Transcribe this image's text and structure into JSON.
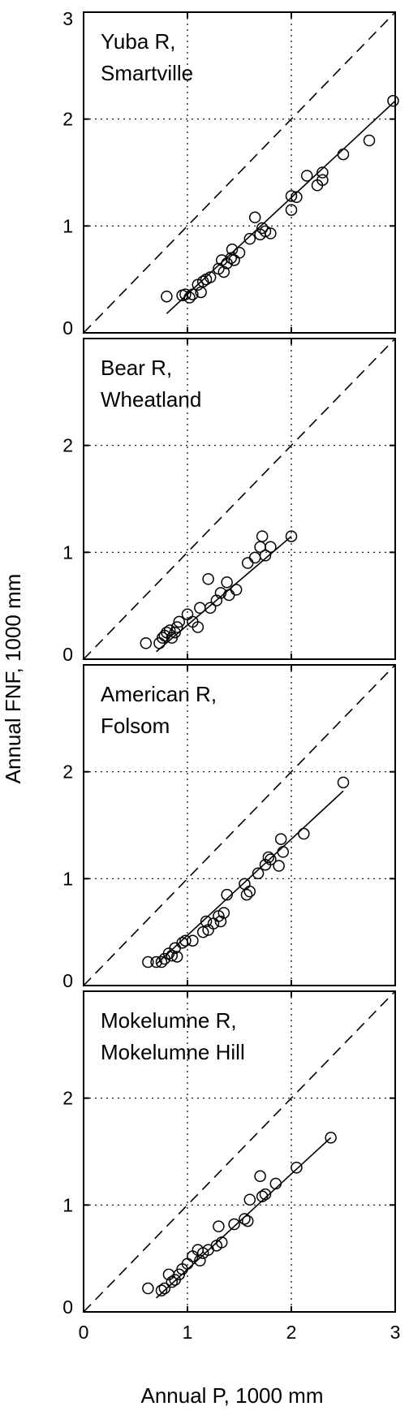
{
  "chart_data": {
    "type": "scatter",
    "xlabel": "Annual P, 1000 mm",
    "ylabel": "Annual FNF, 1000 mm",
    "xlim": [
      0,
      3
    ],
    "ylim": [
      0,
      3
    ],
    "x_ticks": [
      "0",
      "1",
      "2",
      "3"
    ],
    "y_ticks": [
      "0",
      "1",
      "2",
      "3"
    ],
    "grid": "dotted at 1 and 2",
    "reference_line": "1:1 dashed",
    "panels": [
      {
        "title_lines": [
          "Yuba R,",
          "Smartville"
        ],
        "y_ticks": [
          "0",
          "1",
          "2",
          "3"
        ],
        "fit": [
          [
            0.8,
            0.18
          ],
          [
            3.0,
            2.17
          ]
        ],
        "points": [
          [
            0.8,
            0.34
          ],
          [
            0.95,
            0.35
          ],
          [
            0.98,
            0.36
          ],
          [
            1.02,
            0.33
          ],
          [
            1.05,
            0.36
          ],
          [
            1.1,
            0.45
          ],
          [
            1.13,
            0.38
          ],
          [
            1.15,
            0.48
          ],
          [
            1.18,
            0.5
          ],
          [
            1.22,
            0.52
          ],
          [
            1.3,
            0.6
          ],
          [
            1.33,
            0.68
          ],
          [
            1.35,
            0.57
          ],
          [
            1.38,
            0.65
          ],
          [
            1.42,
            0.7
          ],
          [
            1.43,
            0.78
          ],
          [
            1.45,
            0.68
          ],
          [
            1.5,
            0.75
          ],
          [
            1.6,
            0.88
          ],
          [
            1.65,
            1.08
          ],
          [
            1.7,
            0.92
          ],
          [
            1.72,
            0.98
          ],
          [
            1.75,
            0.95
          ],
          [
            1.8,
            0.93
          ],
          [
            2.0,
            1.28
          ],
          [
            2.0,
            1.15
          ],
          [
            2.05,
            1.27
          ],
          [
            2.15,
            1.47
          ],
          [
            2.25,
            1.38
          ],
          [
            2.3,
            1.43
          ],
          [
            2.3,
            1.5
          ],
          [
            2.5,
            1.67
          ],
          [
            2.75,
            1.8
          ],
          [
            2.98,
            2.17
          ]
        ]
      },
      {
        "title_lines": [
          "Bear R,",
          "Wheatland"
        ],
        "y_ticks": [
          "0",
          "1",
          "2"
        ],
        "fit": [
          [
            0.7,
            0.07
          ],
          [
            2.0,
            1.15
          ]
        ],
        "points": [
          [
            0.6,
            0.15
          ],
          [
            0.73,
            0.15
          ],
          [
            0.76,
            0.2
          ],
          [
            0.78,
            0.22
          ],
          [
            0.8,
            0.25
          ],
          [
            0.83,
            0.27
          ],
          [
            0.85,
            0.2
          ],
          [
            0.88,
            0.25
          ],
          [
            0.9,
            0.3
          ],
          [
            0.92,
            0.35
          ],
          [
            1.0,
            0.42
          ],
          [
            1.05,
            0.35
          ],
          [
            1.1,
            0.3
          ],
          [
            1.12,
            0.48
          ],
          [
            1.2,
            0.75
          ],
          [
            1.22,
            0.48
          ],
          [
            1.28,
            0.55
          ],
          [
            1.32,
            0.62
          ],
          [
            1.38,
            0.72
          ],
          [
            1.4,
            0.6
          ],
          [
            1.47,
            0.65
          ],
          [
            1.58,
            0.9
          ],
          [
            1.65,
            0.95
          ],
          [
            1.7,
            1.05
          ],
          [
            1.72,
            1.15
          ],
          [
            1.75,
            0.97
          ],
          [
            1.8,
            1.05
          ],
          [
            2.0,
            1.15
          ]
        ]
      },
      {
        "title_lines": [
          "American R,",
          "Folsom"
        ],
        "y_ticks": [
          "0",
          "1",
          "2"
        ],
        "fit": [
          [
            0.7,
            0.2
          ],
          [
            2.5,
            1.82
          ]
        ],
        "points": [
          [
            0.62,
            0.22
          ],
          [
            0.7,
            0.22
          ],
          [
            0.75,
            0.22
          ],
          [
            0.78,
            0.25
          ],
          [
            0.82,
            0.3
          ],
          [
            0.85,
            0.28
          ],
          [
            0.88,
            0.35
          ],
          [
            0.9,
            0.27
          ],
          [
            0.95,
            0.4
          ],
          [
            0.98,
            0.42
          ],
          [
            1.05,
            0.42
          ],
          [
            1.15,
            0.5
          ],
          [
            1.18,
            0.6
          ],
          [
            1.2,
            0.52
          ],
          [
            1.25,
            0.58
          ],
          [
            1.3,
            0.65
          ],
          [
            1.32,
            0.6
          ],
          [
            1.35,
            0.68
          ],
          [
            1.38,
            0.85
          ],
          [
            1.55,
            0.95
          ],
          [
            1.57,
            0.85
          ],
          [
            1.6,
            0.88
          ],
          [
            1.68,
            1.05
          ],
          [
            1.75,
            1.13
          ],
          [
            1.78,
            1.2
          ],
          [
            1.8,
            1.18
          ],
          [
            1.88,
            1.12
          ],
          [
            1.9,
            1.37
          ],
          [
            1.92,
            1.25
          ],
          [
            2.12,
            1.42
          ],
          [
            2.5,
            1.9
          ]
        ]
      },
      {
        "title_lines": [
          "Mokelumne R,",
          "Mokelumne Hill"
        ],
        "y_ticks": [
          "0",
          "1",
          "2"
        ],
        "fit": [
          [
            0.7,
            0.13
          ],
          [
            2.38,
            1.63
          ]
        ],
        "points": [
          [
            0.62,
            0.22
          ],
          [
            0.75,
            0.2
          ],
          [
            0.78,
            0.22
          ],
          [
            0.82,
            0.35
          ],
          [
            0.85,
            0.28
          ],
          [
            0.88,
            0.3
          ],
          [
            0.92,
            0.35
          ],
          [
            0.95,
            0.4
          ],
          [
            1.0,
            0.45
          ],
          [
            1.05,
            0.52
          ],
          [
            1.1,
            0.58
          ],
          [
            1.12,
            0.48
          ],
          [
            1.15,
            0.55
          ],
          [
            1.2,
            0.58
          ],
          [
            1.28,
            0.62
          ],
          [
            1.3,
            0.8
          ],
          [
            1.33,
            0.65
          ],
          [
            1.45,
            0.82
          ],
          [
            1.55,
            0.87
          ],
          [
            1.58,
            0.85
          ],
          [
            1.6,
            1.05
          ],
          [
            1.7,
            1.27
          ],
          [
            1.72,
            1.08
          ],
          [
            1.75,
            1.1
          ],
          [
            1.85,
            1.2
          ],
          [
            2.05,
            1.35
          ],
          [
            2.38,
            1.63
          ]
        ]
      }
    ]
  }
}
